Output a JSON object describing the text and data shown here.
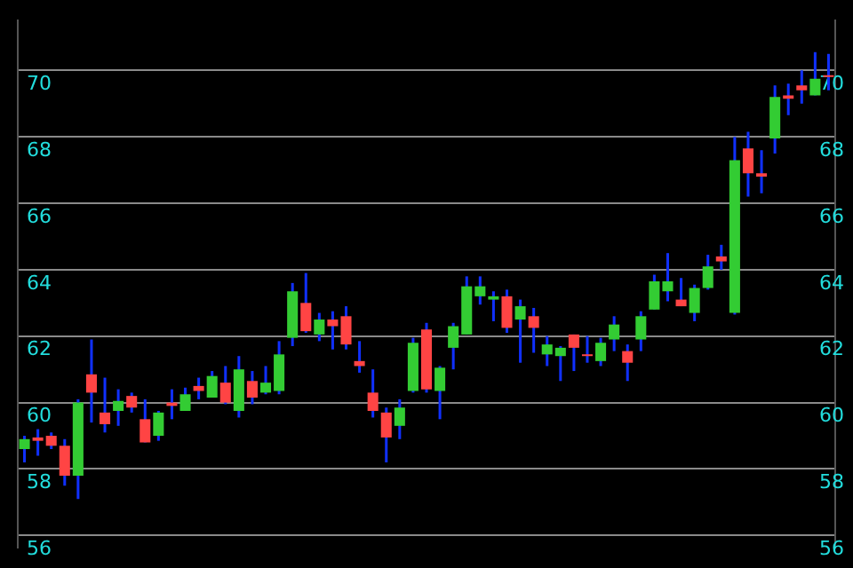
{
  "chart_data": {
    "type": "candlestick",
    "categories": [
      null,
      null,
      null,
      null,
      null,
      null,
      null,
      null,
      null,
      null,
      null,
      null,
      null,
      null,
      null,
      null,
      null,
      null,
      null,
      null,
      null,
      null,
      null,
      null,
      null,
      null,
      null,
      null,
      null,
      null,
      null,
      null,
      null,
      null,
      null,
      null,
      null,
      null,
      null,
      null,
      null,
      null,
      null,
      null,
      null,
      null,
      null,
      null,
      null,
      null,
      null,
      null,
      null,
      null,
      null,
      null,
      null,
      null,
      null,
      null,
      null
    ],
    "ohlc": [
      [
        58.6,
        59.0,
        58.2,
        58.9
      ],
      [
        58.95,
        59.2,
        58.4,
        58.85
      ],
      [
        59.0,
        59.1,
        58.6,
        58.7
      ],
      [
        58.7,
        58.9,
        57.5,
        57.8
      ],
      [
        57.8,
        60.1,
        57.1,
        60.0
      ],
      [
        60.85,
        61.9,
        59.4,
        60.3
      ],
      [
        59.7,
        60.75,
        59.1,
        59.35
      ],
      [
        59.75,
        60.4,
        59.3,
        60.05
      ],
      [
        60.2,
        60.3,
        59.7,
        59.85
      ],
      [
        59.5,
        60.1,
        58.8,
        58.8
      ],
      [
        59.0,
        59.75,
        58.85,
        59.7
      ],
      [
        60.0,
        60.4,
        59.5,
        59.9
      ],
      [
        59.75,
        60.45,
        59.75,
        60.25
      ],
      [
        60.5,
        60.75,
        60.1,
        60.35
      ],
      [
        60.15,
        60.95,
        60.15,
        60.8
      ],
      [
        60.6,
        61.1,
        59.95,
        60.0
      ],
      [
        59.75,
        61.4,
        59.55,
        61.0
      ],
      [
        60.65,
        60.95,
        59.95,
        60.15
      ],
      [
        60.3,
        61.1,
        60.25,
        60.6
      ],
      [
        60.35,
        61.85,
        60.25,
        61.45
      ],
      [
        61.95,
        63.6,
        61.7,
        63.35
      ],
      [
        63.0,
        63.9,
        62.1,
        62.15
      ],
      [
        62.05,
        62.7,
        61.85,
        62.5
      ],
      [
        62.5,
        62.75,
        61.6,
        62.3
      ],
      [
        62.6,
        62.9,
        61.6,
        61.75
      ],
      [
        61.25,
        61.85,
        60.9,
        61.1
      ],
      [
        60.3,
        61.0,
        59.55,
        59.75
      ],
      [
        59.7,
        59.85,
        58.2,
        58.95
      ],
      [
        59.3,
        60.1,
        58.9,
        59.85
      ],
      [
        60.35,
        61.95,
        60.3,
        61.8
      ],
      [
        62.2,
        62.4,
        60.3,
        60.4
      ],
      [
        60.35,
        61.1,
        59.5,
        61.05
      ],
      [
        61.65,
        62.4,
        61.0,
        62.3
      ],
      [
        62.05,
        63.8,
        62.05,
        63.5
      ],
      [
        63.2,
        63.8,
        62.95,
        63.5
      ],
      [
        63.1,
        63.35,
        62.45,
        63.2
      ],
      [
        63.2,
        63.4,
        62.1,
        62.25
      ],
      [
        62.5,
        63.1,
        61.2,
        62.9
      ],
      [
        62.6,
        62.85,
        61.5,
        62.25
      ],
      [
        61.45,
        62.0,
        61.1,
        61.75
      ],
      [
        61.4,
        61.7,
        60.65,
        61.65
      ],
      [
        62.05,
        62.05,
        60.95,
        61.65
      ],
      [
        61.45,
        62.0,
        61.2,
        61.4
      ],
      [
        61.25,
        61.95,
        61.1,
        61.8
      ],
      [
        61.9,
        62.6,
        61.55,
        62.35
      ],
      [
        61.55,
        61.75,
        60.65,
        61.2
      ],
      [
        61.9,
        62.75,
        61.55,
        62.6
      ],
      [
        62.8,
        63.85,
        62.8,
        63.65
      ],
      [
        63.35,
        64.5,
        63.05,
        63.65
      ],
      [
        63.1,
        63.75,
        62.9,
        62.9
      ],
      [
        62.7,
        63.55,
        62.45,
        63.45
      ],
      [
        63.45,
        64.45,
        63.4,
        64.1
      ],
      [
        64.4,
        64.75,
        64.0,
        64.25
      ],
      [
        62.7,
        68.0,
        62.65,
        67.3
      ],
      [
        67.65,
        68.15,
        66.2,
        66.9
      ],
      [
        66.9,
        67.6,
        66.3,
        66.8
      ],
      [
        67.95,
        69.55,
        67.5,
        69.2
      ],
      [
        69.25,
        69.6,
        68.65,
        69.15
      ],
      [
        69.55,
        70.0,
        69.0,
        69.4
      ],
      [
        69.25,
        70.55,
        69.25,
        69.75
      ],
      [
        69.85,
        70.5,
        69.4,
        69.8
      ]
    ],
    "colors": [
      "#33cc33",
      "#ff4444",
      "#ff4444",
      "#ff4444",
      "#33cc33",
      "#ff4444",
      "#ff4444",
      "#33cc33",
      "#ff4444",
      "#ff4444",
      "#33cc33",
      "#ff4444",
      "#33cc33",
      "#ff4444",
      "#33cc33",
      "#ff4444",
      "#33cc33",
      "#ff4444",
      "#33cc33",
      "#33cc33",
      "#33cc33",
      "#ff4444",
      "#33cc33",
      "#ff4444",
      "#ff4444",
      "#ff4444",
      "#ff4444",
      "#ff4444",
      "#33cc33",
      "#33cc33",
      "#ff4444",
      "#33cc33",
      "#33cc33",
      "#33cc33",
      "#33cc33",
      "#33cc33",
      "#ff4444",
      "#33cc33",
      "#ff4444",
      "#33cc33",
      "#33cc33",
      "#ff4444",
      "#ff4444",
      "#33cc33",
      "#33cc33",
      "#ff4444",
      "#33cc33",
      "#33cc33",
      "#33cc33",
      "#ff4444",
      "#33cc33",
      "#33cc33",
      "#ff4444",
      "#33cc33",
      "#ff4444",
      "#ff4444",
      "#33cc33",
      "#ff4444",
      "#ff4444",
      "#33cc33",
      "#ff4444"
    ],
    "ylim": [
      55.64,
      71.5
    ],
    "yticks": [
      56,
      58,
      60,
      62,
      64,
      66,
      68,
      70
    ],
    "y2lim": [
      55.64,
      71.5
    ],
    "y2ticks": [
      56,
      58,
      60,
      62,
      64,
      66,
      68,
      70
    ],
    "tick_labels": "y",
    "grid": "y"
  }
}
